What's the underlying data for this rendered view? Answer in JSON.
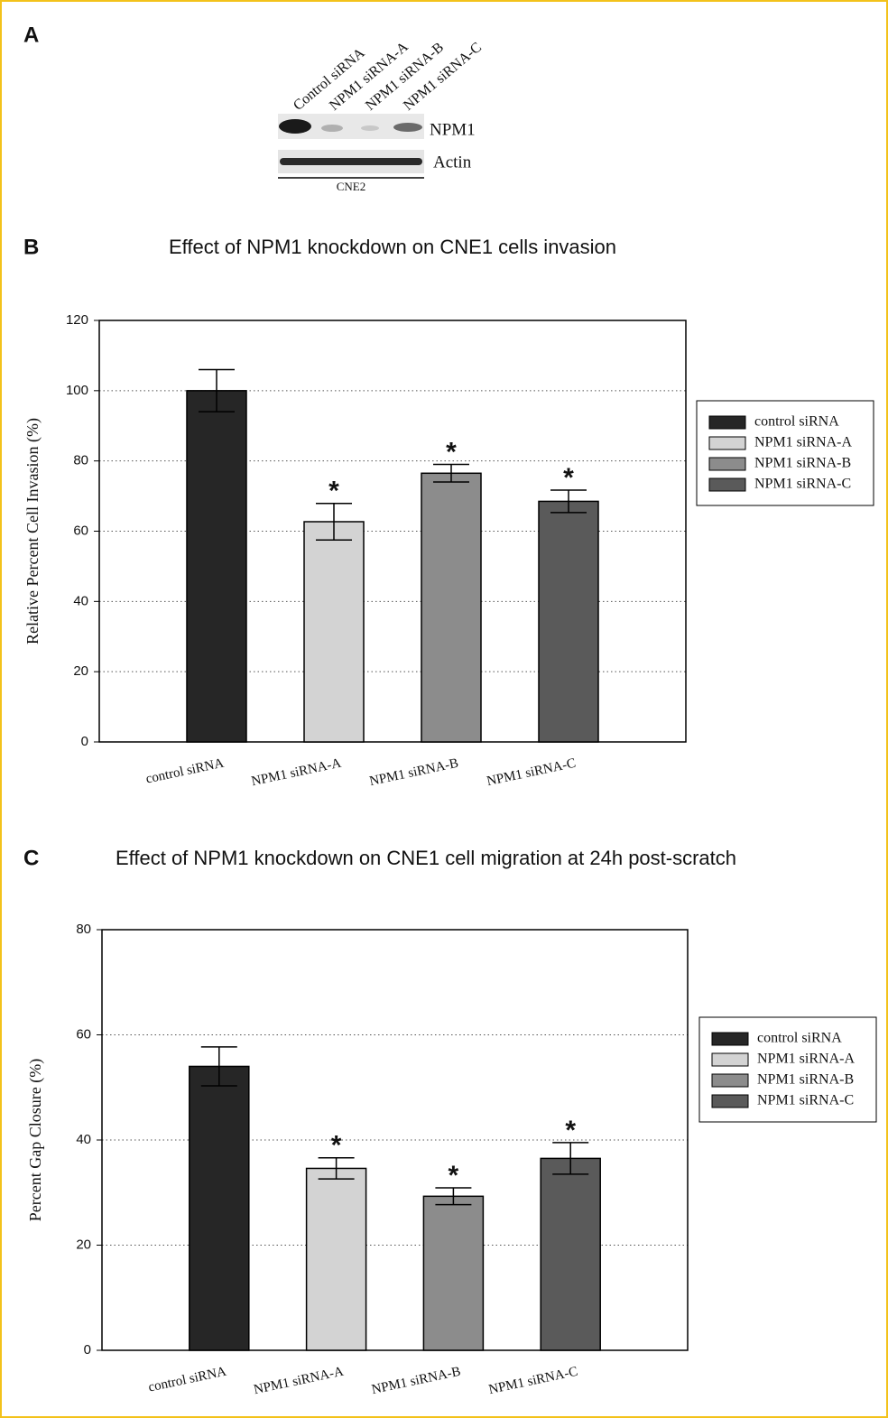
{
  "panel_a": {
    "label": "A",
    "lanes": [
      "Control siRNA",
      "NPM1 siRNA-A",
      "NPM1 siRNA-B",
      "NPM1 siRNA-C"
    ],
    "bands": [
      "NPM1",
      "Actin"
    ],
    "cell_line": "CNE2"
  },
  "chart_data": [
    {
      "type": "bar",
      "panel_label": "B",
      "title": "Effect of NPM1 knockdown on CNE1 cells invasion",
      "y_label": "Relative Percent Cell Invasion (%)",
      "categories": [
        "control siRNA",
        "NPM1 siRNA-A",
        "NPM1 siRNA-B",
        "NPM1 siRNA-C"
      ],
      "values": [
        100,
        62.7,
        76.5,
        68.5
      ],
      "errors": [
        6,
        5.2,
        2.5,
        3.2
      ],
      "significance": [
        null,
        "*",
        "*",
        "*"
      ],
      "colors": [
        "#262626",
        "#d3d3d3",
        "#8c8c8c",
        "#5a5a5a"
      ],
      "ylim": [
        0,
        120
      ],
      "yticks": [
        0,
        20,
        40,
        60,
        80,
        100,
        120
      ],
      "grid": true,
      "legend": "outside right"
    },
    {
      "type": "bar",
      "panel_label": "C",
      "title": "Effect of NPM1 knockdown on CNE1 cell migration at 24h post-scratch",
      "y_label": "Percent Gap Closure (%)",
      "categories": [
        "control siRNA",
        "NPM1 siRNA-A",
        "NPM1 siRNA-B",
        "NPM1 siRNA-C"
      ],
      "values": [
        54,
        34.6,
        29.3,
        36.5
      ],
      "errors": [
        3.7,
        2,
        1.6,
        3
      ],
      "significance": [
        null,
        "*",
        "*",
        "*"
      ],
      "colors": [
        "#262626",
        "#d3d3d3",
        "#8c8c8c",
        "#5a5a5a"
      ],
      "ylim": [
        0,
        80
      ],
      "yticks": [
        0,
        20,
        40,
        60,
        80
      ],
      "grid": true,
      "legend": "outside right"
    }
  ]
}
